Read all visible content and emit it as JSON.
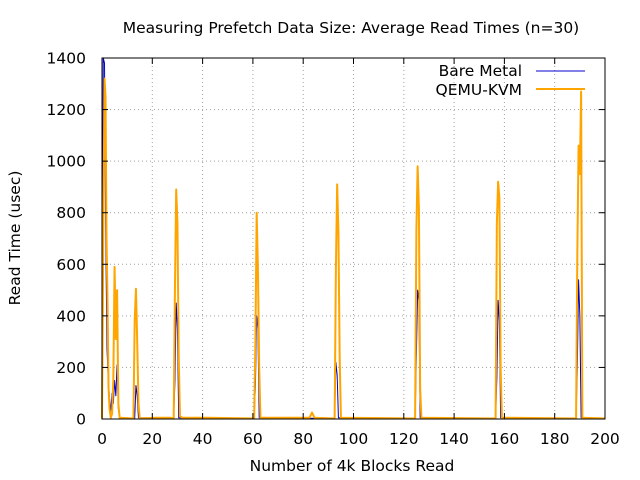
{
  "chart_data": {
    "type": "line",
    "title": "Measuring Prefetch Data Size: Average Read Times (n=30)",
    "xlabel": "Number of 4k Blocks Read",
    "ylabel": "Read Time (usec)",
    "xlim": [
      0,
      200
    ],
    "ylim": [
      0,
      1400
    ],
    "xticks": [
      0,
      20,
      40,
      60,
      80,
      100,
      120,
      140,
      160,
      180,
      200
    ],
    "yticks": [
      0,
      200,
      400,
      600,
      800,
      1000,
      1200,
      1400
    ],
    "grid": true,
    "legend_position": "top-right",
    "series": [
      {
        "name": "Bare Metal",
        "color": "#0000cc",
        "points": [
          [
            0,
            2
          ],
          [
            0.5,
            1400
          ],
          [
            1,
            1380
          ],
          [
            1.5,
            700
          ],
          [
            2,
            270
          ],
          [
            2.5,
            150
          ],
          [
            3,
            80
          ],
          [
            3.5,
            30
          ],
          [
            4,
            100
          ],
          [
            4.5,
            60
          ],
          [
            5,
            150
          ],
          [
            5.5,
            90
          ],
          [
            6,
            210
          ],
          [
            6.5,
            40
          ],
          [
            7,
            5
          ],
          [
            13,
            2
          ],
          [
            13.5,
            130
          ],
          [
            14,
            90
          ],
          [
            14.5,
            5
          ],
          [
            28.5,
            2
          ],
          [
            29,
            150
          ],
          [
            29.5,
            450
          ],
          [
            30,
            350
          ],
          [
            30.5,
            5
          ],
          [
            60.5,
            2
          ],
          [
            61,
            130
          ],
          [
            61.5,
            400
          ],
          [
            62,
            350
          ],
          [
            62.5,
            5
          ],
          [
            92.5,
            2
          ],
          [
            93,
            220
          ],
          [
            93.5,
            170
          ],
          [
            94,
            5
          ],
          [
            124.5,
            2
          ],
          [
            125,
            250
          ],
          [
            125.5,
            500
          ],
          [
            126,
            460
          ],
          [
            126.5,
            5
          ],
          [
            156.5,
            2
          ],
          [
            157,
            160
          ],
          [
            157.5,
            460
          ],
          [
            158,
            380
          ],
          [
            158.5,
            5
          ],
          [
            188.5,
            2
          ],
          [
            189,
            210
          ],
          [
            189.5,
            540
          ],
          [
            190,
            400
          ],
          [
            190.5,
            5
          ],
          [
            200,
            2
          ]
        ]
      },
      {
        "name": "QEMU-KVM",
        "color": "#ffa500",
        "points": [
          [
            0,
            2
          ],
          [
            0.5,
            700
          ],
          [
            1,
            1320
          ],
          [
            1.4,
            1250
          ],
          [
            1.8,
            700
          ],
          [
            2.2,
            450
          ],
          [
            2.6,
            120
          ],
          [
            3,
            40
          ],
          [
            3.5,
            5
          ],
          [
            4,
            20
          ],
          [
            4.5,
            150
          ],
          [
            5,
            590
          ],
          [
            5.5,
            310
          ],
          [
            6,
            500
          ],
          [
            6.5,
            60
          ],
          [
            7,
            5
          ],
          [
            12.5,
            2
          ],
          [
            13,
            380
          ],
          [
            13.5,
            505
          ],
          [
            14,
            300
          ],
          [
            14.5,
            60
          ],
          [
            15,
            2
          ],
          [
            21,
            5
          ],
          [
            27,
            5
          ],
          [
            28.5,
            2
          ],
          [
            29,
            500
          ],
          [
            29.5,
            890
          ],
          [
            30,
            760
          ],
          [
            30.5,
            240
          ],
          [
            31,
            10
          ],
          [
            32,
            5
          ],
          [
            37,
            5
          ],
          [
            40,
            5
          ],
          [
            42,
            5
          ],
          [
            60.5,
            2
          ],
          [
            61,
            300
          ],
          [
            61.5,
            800
          ],
          [
            62,
            580
          ],
          [
            62.5,
            200
          ],
          [
            63,
            5
          ],
          [
            70,
            5
          ],
          [
            75,
            5
          ],
          [
            82.5,
            5
          ],
          [
            83.5,
            25
          ],
          [
            84.5,
            5
          ],
          [
            92.5,
            2
          ],
          [
            93,
            580
          ],
          [
            93.5,
            910
          ],
          [
            94,
            730
          ],
          [
            94.5,
            240
          ],
          [
            95,
            5
          ],
          [
            124.5,
            2
          ],
          [
            125,
            730
          ],
          [
            125.5,
            980
          ],
          [
            126,
            820
          ],
          [
            126.5,
            120
          ],
          [
            127,
            5
          ],
          [
            156.5,
            2
          ],
          [
            157,
            760
          ],
          [
            157.5,
            920
          ],
          [
            158,
            860
          ],
          [
            158.5,
            200
          ],
          [
            159,
            5
          ],
          [
            188.5,
            2
          ],
          [
            189,
            650
          ],
          [
            189.5,
            1060
          ],
          [
            190,
            950
          ],
          [
            190.5,
            1270
          ],
          [
            191,
            5
          ],
          [
            200,
            2
          ]
        ]
      }
    ]
  }
}
